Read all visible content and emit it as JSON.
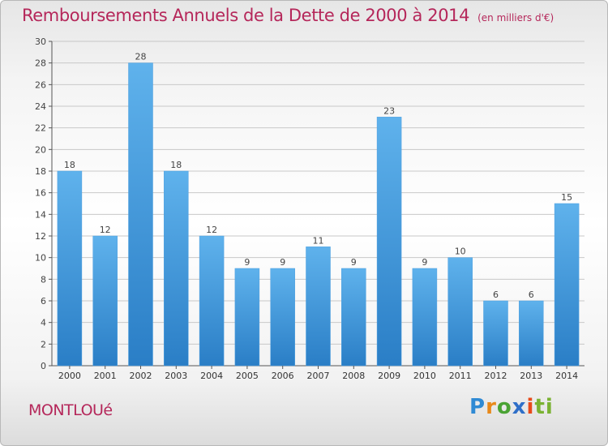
{
  "header": {
    "title": "Remboursements Annuels de la Dette de 2000 à 2014",
    "unit": "(en milliers d'€)"
  },
  "footer": {
    "commune": "MONTLOUé",
    "logo_letters": [
      "P",
      "r",
      "o",
      "x",
      "i",
      "ti"
    ],
    "logo": "Proxiti"
  },
  "colors": {
    "bar_light": "#5fb2ec",
    "bar_dark": "#2a7ec6",
    "title": "#b5275a",
    "grid": "#c8c8c8"
  },
  "chart_data": {
    "type": "bar",
    "title": "Remboursements Annuels de la Dette de 2000 à 2014",
    "subtitle": "(en milliers d'€)",
    "xlabel": "",
    "ylabel": "",
    "categories": [
      "2000",
      "2001",
      "2002",
      "2003",
      "2004",
      "2005",
      "2006",
      "2007",
      "2008",
      "2009",
      "2010",
      "2011",
      "2012",
      "2013",
      "2014"
    ],
    "values": [
      18,
      12,
      28,
      18,
      12,
      9,
      9,
      11,
      9,
      23,
      9,
      10,
      6,
      6,
      15
    ],
    "ylim": [
      0,
      30
    ],
    "yticks": [
      0,
      2,
      4,
      6,
      8,
      10,
      12,
      14,
      16,
      18,
      20,
      22,
      24,
      26,
      28,
      30
    ],
    "grid": true,
    "legend": "none"
  }
}
